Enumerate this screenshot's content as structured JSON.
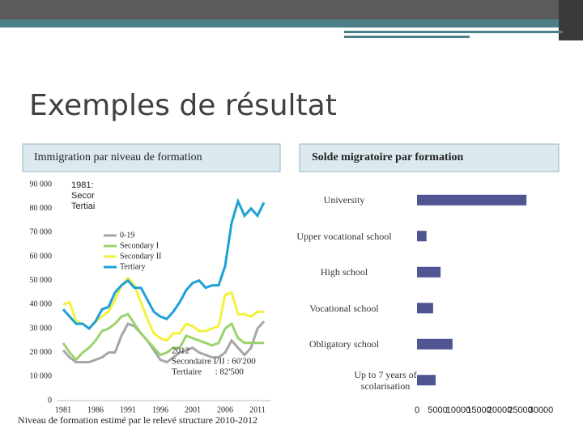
{
  "slide_title": "Exemples de résultat",
  "chart_data": [
    {
      "type": "line",
      "title": "Immigration par niveau de formation",
      "x_label": "Niveau de formation estimé par le relevé structure 2010-2012",
      "x": [
        1981,
        1982,
        1983,
        1984,
        1985,
        1986,
        1987,
        1988,
        1989,
        1990,
        1991,
        1992,
        1993,
        1994,
        1995,
        1996,
        1997,
        1998,
        1999,
        2000,
        2001,
        2002,
        2003,
        2004,
        2005,
        2006,
        2007,
        2008,
        2009,
        2010,
        2011,
        2012
      ],
      "series": [
        {
          "name": "0-19",
          "color": "#a6a6a6",
          "values": [
            21000,
            18000,
            16000,
            16000,
            16000,
            17000,
            18000,
            20000,
            20000,
            27000,
            32000,
            31000,
            28000,
            25000,
            21000,
            17000,
            16000,
            18000,
            20000,
            21000,
            22000,
            20000,
            19000,
            18000,
            18000,
            20000,
            25000,
            22000,
            19000,
            22000,
            30000,
            33000
          ]
        },
        {
          "name": "Secondary I",
          "color": "#9bd36b",
          "values": [
            24000,
            20000,
            17000,
            20000,
            22000,
            25000,
            29000,
            30000,
            32000,
            35000,
            36000,
            32000,
            28000,
            25000,
            22000,
            19000,
            20000,
            22000,
            22000,
            27000,
            26000,
            25000,
            24000,
            23000,
            24000,
            30000,
            32000,
            26000,
            24000,
            24000,
            24000,
            24000
          ]
        },
        {
          "name": "Secondary II",
          "color": "#f2f23a",
          "values": [
            40000,
            41000,
            33000,
            32000,
            30000,
            33000,
            35000,
            37000,
            42000,
            48000,
            51000,
            48000,
            41000,
            34000,
            28000,
            26000,
            25000,
            28000,
            28000,
            32000,
            31000,
            29000,
            29000,
            30000,
            31000,
            44000,
            45000,
            36000,
            36000,
            35000,
            37000,
            37000
          ]
        },
        {
          "name": "Tertiary",
          "color": "#1ea0d8",
          "values": [
            38000,
            35000,
            32000,
            32000,
            30000,
            33000,
            38000,
            39000,
            45000,
            48000,
            50000,
            47000,
            47000,
            42000,
            37000,
            35000,
            34000,
            37000,
            41000,
            46000,
            49000,
            50000,
            47000,
            48000,
            48000,
            56000,
            74000,
            83000,
            77000,
            80000,
            77000,
            82500
          ]
        }
      ],
      "xlim": [
        1980,
        2013
      ],
      "xticks": [
        1981,
        1986,
        1991,
        1996,
        2001,
        2006,
        2011
      ],
      "ylim": [
        0,
        90000
      ],
      "yticks": [
        0,
        {
          "value": 10000,
          "label": "10 000"
        },
        {
          "value": 20000,
          "label": "20 000"
        },
        {
          "value": 30000,
          "label": "30 000"
        },
        {
          "value": 40000,
          "label": "40 000"
        },
        {
          "value": 50000,
          "label": "50 000"
        },
        {
          "value": 60000,
          "label": "60 000"
        },
        {
          "value": 70000,
          "label": "70 000"
        },
        {
          "value": 80000,
          "label": "80 000"
        },
        {
          "value": 90000,
          "label": "90 000"
        }
      ],
      "annotations": [
        [
          "1981:",
          "Secor",
          "Tertiai"
        ],
        [
          "2012",
          "Secondaire I/II : 60'200",
          "Tertiaire      : 82'500"
        ]
      ]
    },
    {
      "type": "barh",
      "title": "Solde migratoire par formation",
      "categories": [
        "University",
        "Upper vocational school",
        "High school",
        "Vocational school",
        "Obligatory school",
        "Up to 7 years of scolarisation"
      ],
      "values": [
        26500,
        2300,
        5700,
        3900,
        8600,
        4500
      ],
      "color": "#4f5591",
      "xlim": [
        0,
        30000
      ],
      "xticks": [
        0,
        5000,
        10000,
        15000,
        20000,
        25000,
        30000
      ]
    }
  ]
}
